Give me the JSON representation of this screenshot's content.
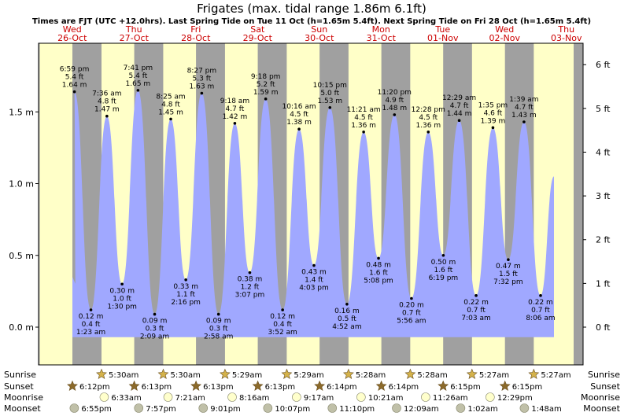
{
  "chart_data": {
    "type": "area",
    "title": "Frigates (max. tidal range 1.86m 6.1ft)",
    "subtitle": "Times are FJT (UTC +12.0hrs). Last Spring Tide on Tue 11 Oct (h=1.65m 5.4ft). Next Spring Tide on Fri 28 Oct (h=1.65m 5.4ft)",
    "day_headers": [
      {
        "dow": "Wed",
        "date": "26-Oct"
      },
      {
        "dow": "Thu",
        "date": "27-Oct"
      },
      {
        "dow": "Fri",
        "date": "28-Oct"
      },
      {
        "dow": "Sat",
        "date": "29-Oct"
      },
      {
        "dow": "Sun",
        "date": "30-Oct"
      },
      {
        "dow": "Mon",
        "date": "31-Oct"
      },
      {
        "dow": "Tue",
        "date": "01-Nov"
      },
      {
        "dow": "Wed",
        "date": "02-Nov"
      },
      {
        "dow": "Thu",
        "date": "03-Nov"
      }
    ],
    "y_left_ticks": [
      "0.0 m",
      "0.5 m",
      "1.0 m",
      "1.5 m"
    ],
    "y_right_ticks": [
      "0 ft",
      "1 ft",
      "2 ft",
      "3 ft",
      "4 ft",
      "5 ft",
      "6 ft"
    ],
    "ylim_m": [
      -0.07,
      1.86
    ],
    "tides": [
      {
        "day": 0,
        "time": "6:59 pm",
        "ft": "5.4 ft",
        "m": "1.64 m",
        "value": 1.64,
        "type": "high"
      },
      {
        "day": 1,
        "time": "1:23 am",
        "ft": "0.4 ft",
        "m": "0.12 m",
        "value": 0.12,
        "type": "low"
      },
      {
        "day": 1,
        "time": "7:36 am",
        "ft": "4.8 ft",
        "m": "1.47 m",
        "value": 1.47,
        "type": "high"
      },
      {
        "day": 1,
        "time": "1:30 pm",
        "ft": "1.0 ft",
        "m": "0.30 m",
        "value": 0.3,
        "type": "low"
      },
      {
        "day": 1,
        "time": "7:41 pm",
        "ft": "5.4 ft",
        "m": "1.65 m",
        "value": 1.65,
        "type": "high"
      },
      {
        "day": 2,
        "time": "2:09 am",
        "ft": "0.3 ft",
        "m": "0.09 m",
        "value": 0.09,
        "type": "low"
      },
      {
        "day": 2,
        "time": "8:25 am",
        "ft": "4.8 ft",
        "m": "1.45 m",
        "value": 1.45,
        "type": "high"
      },
      {
        "day": 2,
        "time": "2:16 pm",
        "ft": "1.1 ft",
        "m": "0.33 m",
        "value": 0.33,
        "type": "low"
      },
      {
        "day": 2,
        "time": "8:27 pm",
        "ft": "5.3 ft",
        "m": "1.63 m",
        "value": 1.63,
        "type": "high"
      },
      {
        "day": 3,
        "time": "2:58 am",
        "ft": "0.3 ft",
        "m": "0.09 m",
        "value": 0.09,
        "type": "low"
      },
      {
        "day": 3,
        "time": "9:18 am",
        "ft": "4.7 ft",
        "m": "1.42 m",
        "value": 1.42,
        "type": "high"
      },
      {
        "day": 3,
        "time": "3:07 pm",
        "ft": "1.2 ft",
        "m": "0.38 m",
        "value": 0.38,
        "type": "low"
      },
      {
        "day": 3,
        "time": "9:18 pm",
        "ft": "5.2 ft",
        "m": "1.59 m",
        "value": 1.59,
        "type": "high"
      },
      {
        "day": 4,
        "time": "3:52 am",
        "ft": "0.4 ft",
        "m": "0.12 m",
        "value": 0.12,
        "type": "low"
      },
      {
        "day": 4,
        "time": "10:16 am",
        "ft": "4.5 ft",
        "m": "1.38 m",
        "value": 1.38,
        "type": "high"
      },
      {
        "day": 4,
        "time": "4:03 pm",
        "ft": "1.4 ft",
        "m": "0.43 m",
        "value": 0.43,
        "type": "low"
      },
      {
        "day": 4,
        "time": "10:15 pm",
        "ft": "5.0 ft",
        "m": "1.53 m",
        "value": 1.53,
        "type": "high"
      },
      {
        "day": 5,
        "time": "4:52 am",
        "ft": "0.5 ft",
        "m": "0.16 m",
        "value": 0.16,
        "type": "low"
      },
      {
        "day": 5,
        "time": "11:21 am",
        "ft": "4.5 ft",
        "m": "1.36 m",
        "value": 1.36,
        "type": "high"
      },
      {
        "day": 5,
        "time": "5:08 pm",
        "ft": "1.6 ft",
        "m": "0.48 m",
        "value": 0.48,
        "type": "low"
      },
      {
        "day": 5,
        "time": "11:20 pm",
        "ft": "4.9 ft",
        "m": "1.48 m",
        "value": 1.48,
        "type": "high"
      },
      {
        "day": 6,
        "time": "5:56 am",
        "ft": "0.7 ft",
        "m": "0.20 m",
        "value": 0.2,
        "type": "low"
      },
      {
        "day": 6,
        "time": "12:28 pm",
        "ft": "4.5 ft",
        "m": "1.36 m",
        "value": 1.36,
        "type": "high"
      },
      {
        "day": 6,
        "time": "6:19 pm",
        "ft": "1.6 ft",
        "m": "0.50 m",
        "value": 0.5,
        "type": "low"
      },
      {
        "day": 7,
        "time": "12:29 am",
        "ft": "4.7 ft",
        "m": "1.44 m",
        "value": 1.44,
        "type": "high"
      },
      {
        "day": 7,
        "time": "7:03 am",
        "ft": "0.7 ft",
        "m": "0.22 m",
        "value": 0.22,
        "type": "low"
      },
      {
        "day": 7,
        "time": "1:35 pm",
        "ft": "4.6 ft",
        "m": "1.39 m",
        "value": 1.39,
        "type": "high"
      },
      {
        "day": 7,
        "time": "7:32 pm",
        "ft": "1.5 ft",
        "m": "0.47 m",
        "value": 0.47,
        "type": "low"
      },
      {
        "day": 8,
        "time": "1:39 am",
        "ft": "4.7 ft",
        "m": "1.43 m",
        "value": 1.43,
        "type": "high"
      },
      {
        "day": 8,
        "time": "8:06 am",
        "ft": "0.7 ft",
        "m": "0.22 m",
        "value": 0.22,
        "type": "low"
      }
    ],
    "sun_moon": {
      "labels": {
        "sunrise": "Sunrise",
        "sunset": "Sunset",
        "moonrise": "Moonrise",
        "moonset": "Moonset"
      },
      "sunrise": [
        "5:30am",
        "5:30am",
        "5:29am",
        "5:29am",
        "5:28am",
        "5:28am",
        "5:27am",
        "5:27am"
      ],
      "sunset": [
        "6:12pm",
        "6:13pm",
        "6:13pm",
        "6:13pm",
        "6:14pm",
        "6:14pm",
        "6:15pm",
        "6:15pm"
      ],
      "moonrise": [
        "6:33am",
        "7:21am",
        "8:16am",
        "9:17am",
        "10:21am",
        "11:26am",
        "12:29pm"
      ],
      "moonset": [
        "6:55pm",
        "7:57pm",
        "9:01pm",
        "10:07pm",
        "11:10pm",
        "12:09am",
        "1:02am",
        "1:48am"
      ]
    },
    "colors": {
      "day_bg": "#ffffc8",
      "night_bg": "#a0a0a0",
      "water": "#a0a8ff",
      "header_day": "#cc0000",
      "frame_bg": "#ffffff",
      "sun_star": "#d4b24a",
      "sunset_star": "#8c6a2a",
      "moonrise": "#ffffcc",
      "moonset": "#c0c0a8"
    }
  }
}
